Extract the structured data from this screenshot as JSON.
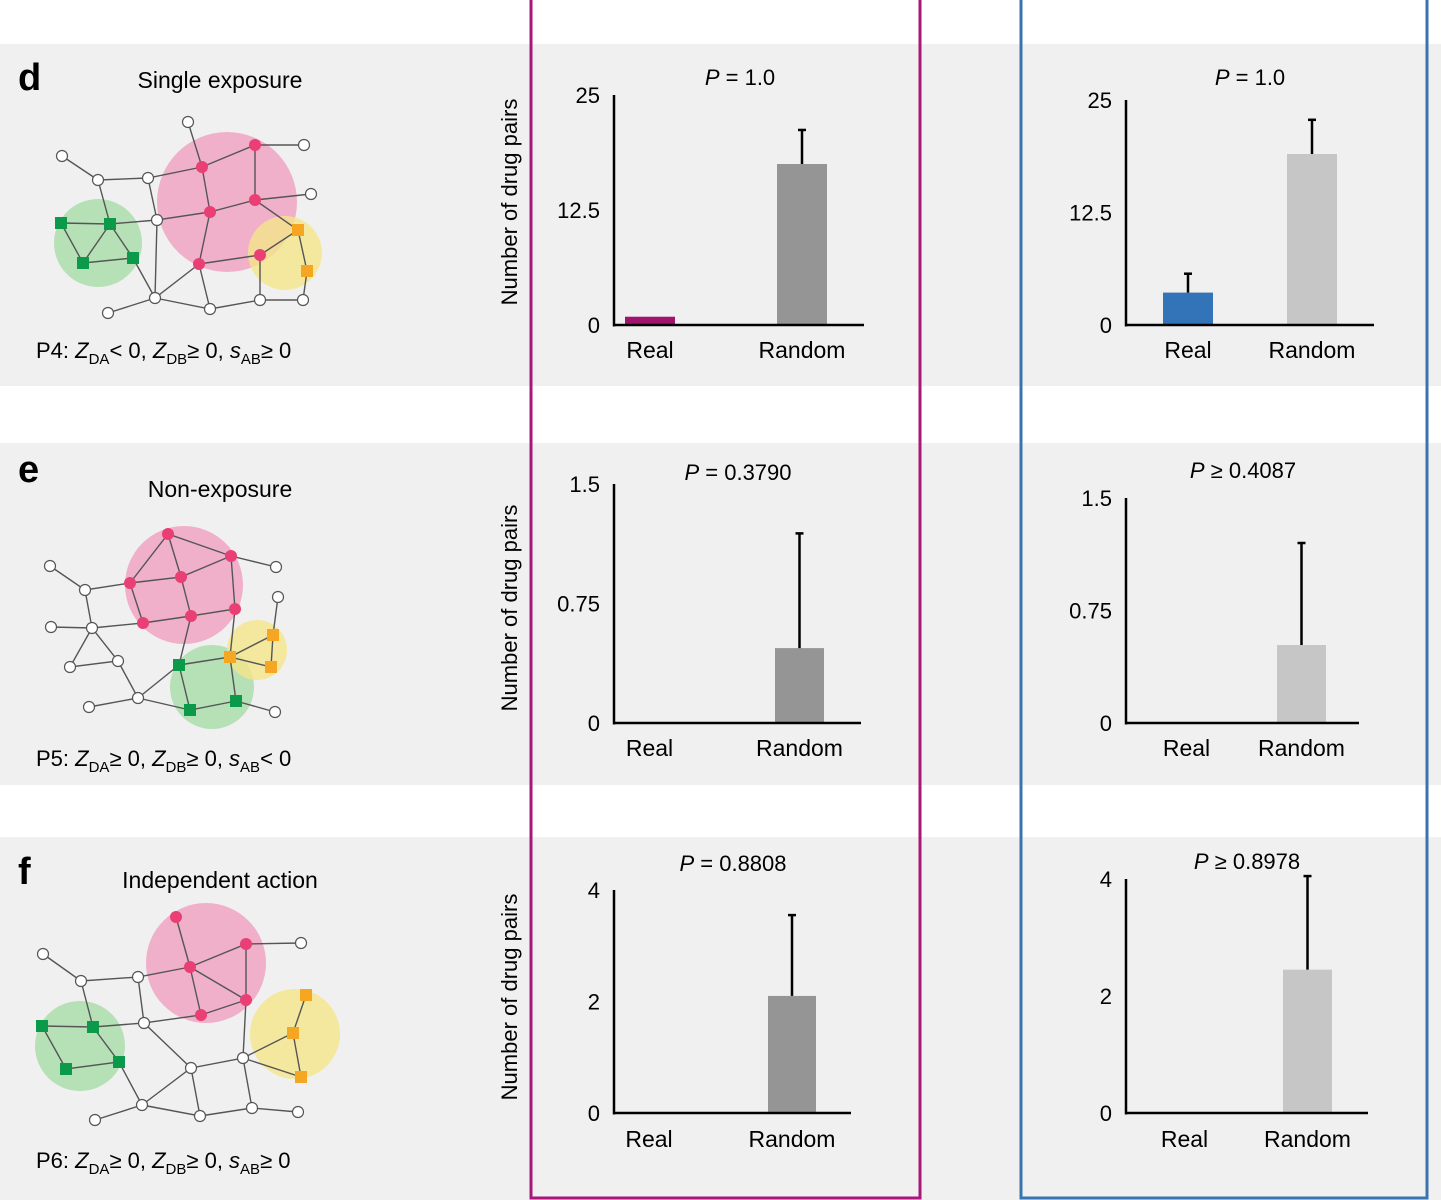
{
  "colors": {
    "panel_bg": "#f0f0f0",
    "magenta_box": "#a8177a",
    "blue_box": "#3a73ad",
    "real_bar_magenta": "#a0146e",
    "random_bar_dark": "#959595",
    "real_bar_blue": "#3373b8",
    "random_bar_light": "#c6c6c6",
    "module_pink": "#f0a0c0",
    "module_green": "#a8dca8",
    "module_yellow": "#f5e58a",
    "node_pink": "#ea3f74",
    "node_green": "#0a9a4a",
    "node_orange": "#f5a623"
  },
  "rows": [
    {
      "letter": "d",
      "title": "Single exposure",
      "condition": {
        "prefix": "P4: ",
        "za_op": "< 0",
        "zb_op": "≥ 0",
        "s_op": "≥ 0"
      }
    },
    {
      "letter": "e",
      "title": "Non-exposure",
      "condition": {
        "prefix": "P5: ",
        "za_op": "≥ 0",
        "zb_op": "≥ 0",
        "s_op": "< 0"
      }
    },
    {
      "letter": "f",
      "title": "Independent action",
      "condition": {
        "prefix": "P6: ",
        "za_op": "≥ 0",
        "zb_op": "≥ 0",
        "s_op": "≥ 0"
      }
    }
  ],
  "condition_symbols": {
    "z": "Z",
    "da": "DA",
    "db": "DB",
    "s": "s",
    "ab": "AB"
  },
  "ylabel": "Number of drug pairs",
  "chart_data": [
    {
      "type": "bar",
      "row": "d",
      "group": "left",
      "p_label": "P",
      "p_text": " = 1.0",
      "categories": [
        "Real",
        "Random"
      ],
      "values": [
        0.9,
        17.5
      ],
      "errors": [
        0,
        3.7
      ],
      "ylim": [
        0,
        25
      ],
      "yticks": [
        "0",
        "12.5",
        "25"
      ],
      "ytick_values": [
        0,
        12.5,
        25
      ]
    },
    {
      "type": "bar",
      "row": "d",
      "group": "right",
      "p_label": "P",
      "p_text": " = 1.0",
      "categories": [
        "Real",
        "Random"
      ],
      "values": [
        3.6,
        19.0
      ],
      "errors": [
        2.1,
        3.8
      ],
      "ylim": [
        0,
        25
      ],
      "yticks": [
        "0",
        "12.5",
        "25"
      ],
      "ytick_values": [
        0,
        12.5,
        25
      ]
    },
    {
      "type": "bar",
      "row": "e",
      "group": "left",
      "p_label": "P",
      "p_text": " = 0.3790",
      "categories": [
        "Real",
        "Random"
      ],
      "values": [
        0,
        0.47
      ],
      "errors": [
        0,
        0.72
      ],
      "ylim": [
        0,
        1.5
      ],
      "yticks": [
        "0",
        "0.75",
        "1.5"
      ],
      "ytick_values": [
        0,
        0.75,
        1.5
      ]
    },
    {
      "type": "bar",
      "row": "e",
      "group": "right",
      "p_label": "P",
      "p_text": " ≥ 0.4087",
      "categories": [
        "Real",
        "Random"
      ],
      "values": [
        0,
        0.52
      ],
      "errors": [
        0,
        0.68
      ],
      "ylim": [
        0,
        1.5
      ],
      "yticks": [
        "0",
        "0.75",
        "1.5"
      ],
      "ytick_values": [
        0,
        0.75,
        1.5
      ]
    },
    {
      "type": "bar",
      "row": "f",
      "group": "left",
      "p_label": "P",
      "p_text": " = 0.8808",
      "categories": [
        "Real",
        "Random"
      ],
      "values": [
        0,
        2.1
      ],
      "errors": [
        0,
        1.45
      ],
      "ylim": [
        0,
        4
      ],
      "yticks": [
        "0",
        "2",
        "4"
      ],
      "ytick_values": [
        0,
        2,
        4
      ]
    },
    {
      "type": "bar",
      "row": "f",
      "group": "right",
      "p_label": "P",
      "p_text": " ≥ 0.8978",
      "categories": [
        "Real",
        "Random"
      ],
      "values": [
        0,
        2.45
      ],
      "errors": [
        0,
        1.6
      ],
      "ylim": [
        0,
        4
      ],
      "yticks": [
        "0",
        "2",
        "4"
      ],
      "ytick_values": [
        0,
        2,
        4
      ]
    }
  ]
}
